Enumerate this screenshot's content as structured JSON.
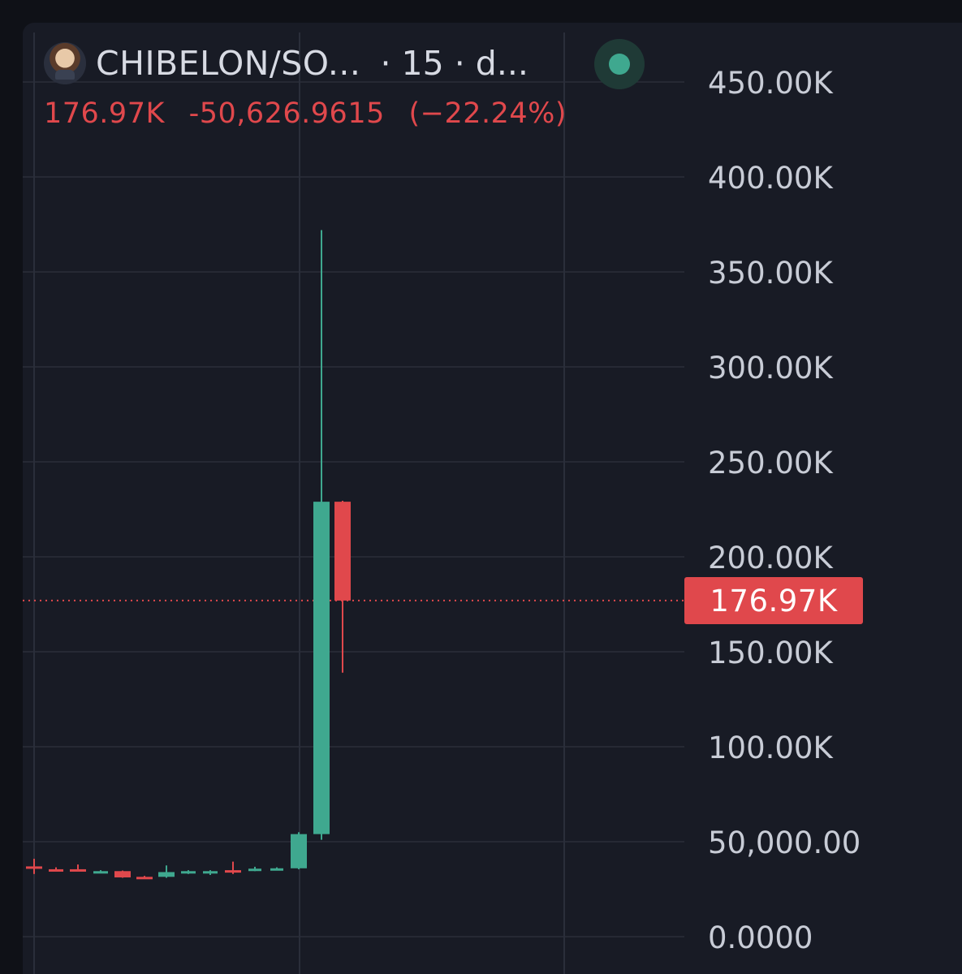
{
  "header": {
    "symbol": "CHIBELON/SO...",
    "interval": "· 15 · d...",
    "live_dot_color": "#3fa88f"
  },
  "legend": {
    "last": "176.97K",
    "change": "-50,626.9615",
    "change_pct": "(−22.24%)",
    "color": "#e0484c"
  },
  "price_tag": {
    "label": "176.97K",
    "value": 176970,
    "color": "#e0484c"
  },
  "colors": {
    "up": "#3fa88f",
    "down": "#e0484c",
    "background": "#181b25",
    "grid": "#2a2e3a",
    "axis_text": "#c8ccd6"
  },
  "chart_data": {
    "type": "candlestick",
    "title": "CHIBELON/SO... · 15 · d...",
    "ylim": [
      0,
      460000
    ],
    "y_ticks": [
      {
        "value": 0,
        "label": "0.0000"
      },
      {
        "value": 50000,
        "label": "50,000.00"
      },
      {
        "value": 100000,
        "label": "100.00K"
      },
      {
        "value": 150000,
        "label": "150.00K"
      },
      {
        "value": 200000,
        "label": "200.00K"
      },
      {
        "value": 250000,
        "label": "250.00K"
      },
      {
        "value": 300000,
        "label": "300.00K"
      },
      {
        "value": 350000,
        "label": "350.00K"
      },
      {
        "value": 400000,
        "label": "400.00K"
      },
      {
        "value": 450000,
        "label": "450.00K"
      }
    ],
    "grid": true,
    "candles": [
      {
        "open": 37000,
        "high": 41000,
        "low": 33000,
        "close": 36000
      },
      {
        "open": 35500,
        "high": 36500,
        "low": 34500,
        "close": 35000
      },
      {
        "open": 35500,
        "high": 38000,
        "low": 34500,
        "close": 35000
      },
      {
        "open": 34000,
        "high": 35000,
        "low": 33500,
        "close": 34500
      },
      {
        "open": 34500,
        "high": 34800,
        "low": 31000,
        "close": 31200
      },
      {
        "open": 31500,
        "high": 32000,
        "low": 31000,
        "close": 31200
      },
      {
        "open": 31500,
        "high": 37500,
        "low": 31000,
        "close": 34000
      },
      {
        "open": 33500,
        "high": 35000,
        "low": 33000,
        "close": 34500
      },
      {
        "open": 34000,
        "high": 35000,
        "low": 32500,
        "close": 34500
      },
      {
        "open": 35000,
        "high": 39500,
        "low": 33000,
        "close": 34500
      },
      {
        "open": 35000,
        "high": 36800,
        "low": 34500,
        "close": 35800
      },
      {
        "open": 35500,
        "high": 36500,
        "low": 35000,
        "close": 36000
      },
      {
        "open": 36000,
        "high": 55000,
        "low": 35500,
        "close": 54000
      },
      {
        "open": 54000,
        "high": 372000,
        "low": 51000,
        "close": 229000
      },
      {
        "open": 229000,
        "high": 229500,
        "low": 139000,
        "close": 176970
      }
    ]
  }
}
